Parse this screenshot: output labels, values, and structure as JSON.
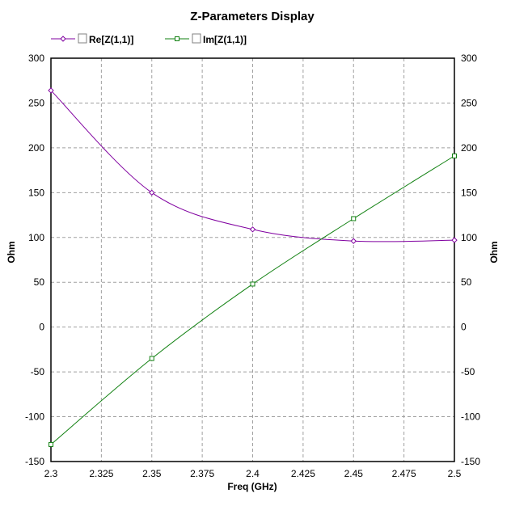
{
  "chart_data": {
    "type": "line",
    "title": "Z-Parameters Display",
    "xlabel": "Freq (GHz)",
    "ylabel": "Ohm",
    "ylabel_right": "Ohm",
    "xlim": [
      2.3,
      2.5
    ],
    "ylim": [
      -150,
      300
    ],
    "xticks": [
      "2.3",
      "2.325",
      "2.35",
      "2.375",
      "2.4",
      "2.425",
      "2.45",
      "2.475",
      "2.5"
    ],
    "yticks": [
      "300",
      "250",
      "200",
      "150",
      "100",
      "50",
      "0",
      "-50",
      "-100",
      "-150"
    ],
    "grid": true,
    "legend_position": "top-left",
    "x": [
      2.3,
      2.35,
      2.4,
      2.45,
      2.5
    ],
    "series": [
      {
        "name": "Re[Z(1,1)]",
        "color": "#8000a0",
        "marker": "diamond",
        "values": [
          264,
          150,
          109,
          96,
          97
        ]
      },
      {
        "name": "Im[Z(1,1)]",
        "color": "#108010",
        "marker": "square",
        "values": [
          -131,
          -35,
          48,
          121,
          191
        ]
      }
    ]
  }
}
